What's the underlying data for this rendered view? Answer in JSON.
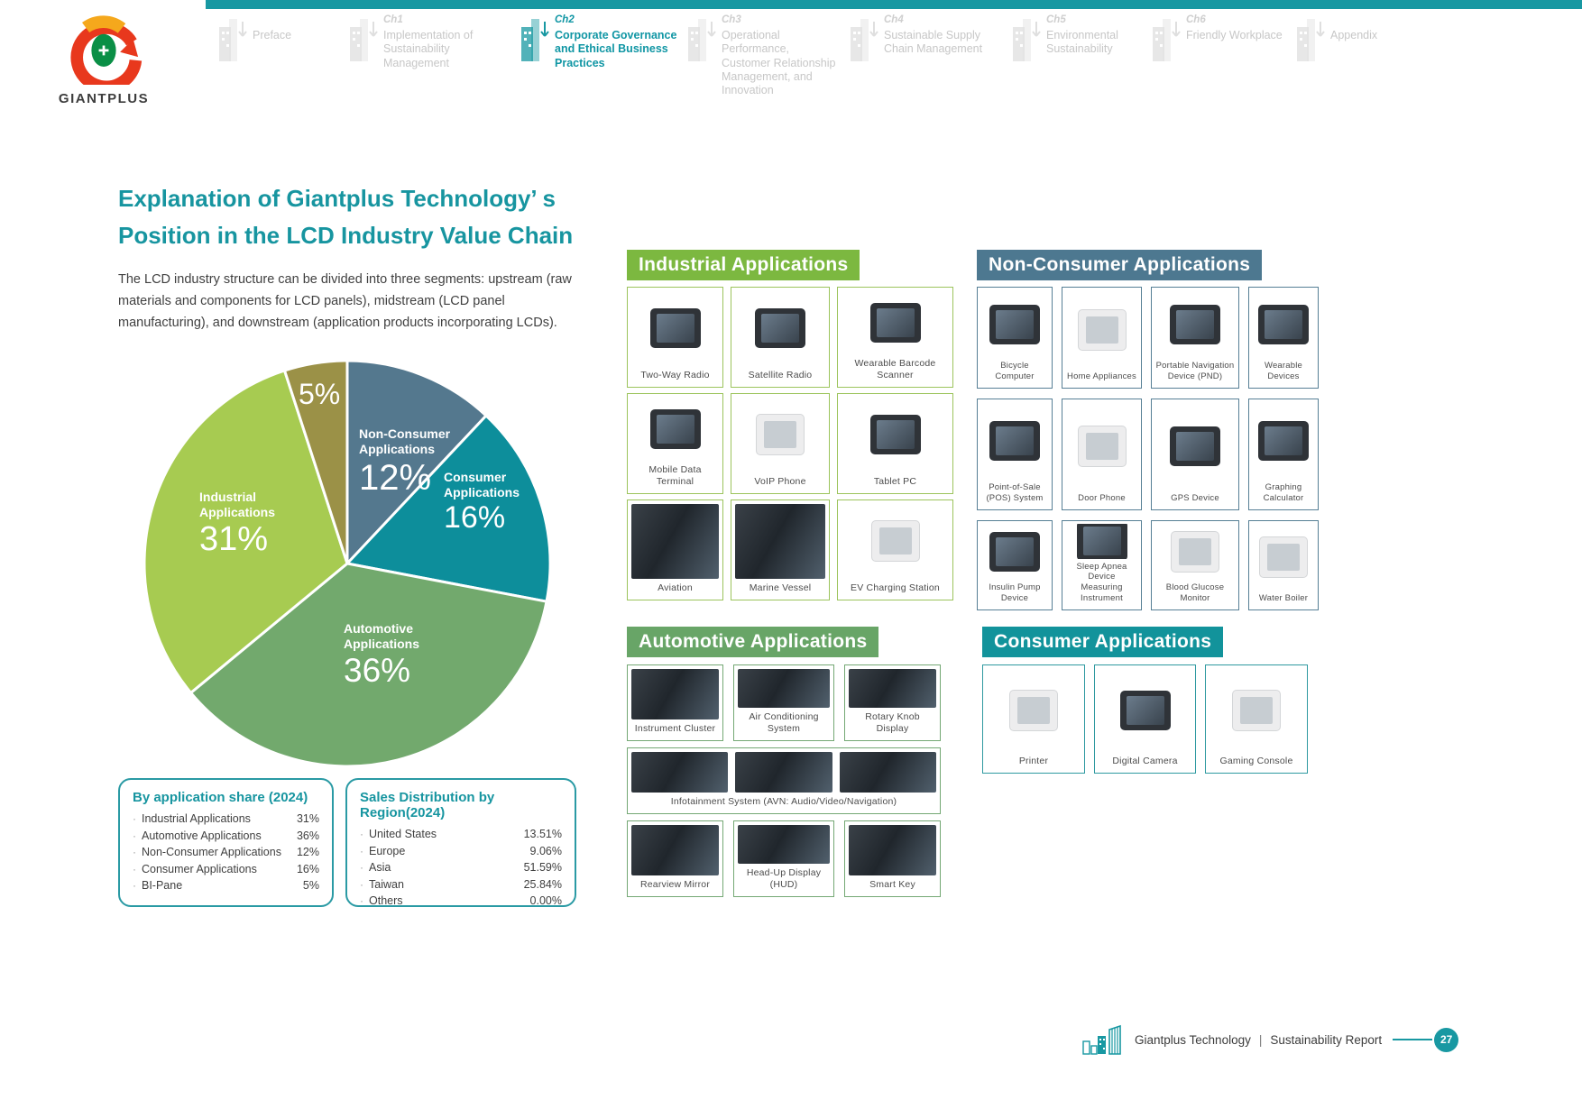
{
  "brand": {
    "logo_text": "GIANTPLUS"
  },
  "nav": {
    "items": [
      {
        "ch": "",
        "label": "Preface",
        "active": false
      },
      {
        "ch": "Ch1",
        "label": "Implementation of Sustainability Management",
        "active": false
      },
      {
        "ch": "Ch2",
        "label": "Corporate Governance and Ethical Business Practices",
        "active": true
      },
      {
        "ch": "Ch3",
        "label": "Operational Performance, Customer Relationship Management, and Innovation",
        "active": false
      },
      {
        "ch": "Ch4",
        "label": "Sustainable Supply Chain Management",
        "active": false
      },
      {
        "ch": "Ch5",
        "label": "Environmental Sustainability",
        "active": false
      },
      {
        "ch": "Ch6",
        "label": "Friendly Workplace",
        "active": false
      },
      {
        "ch": "",
        "label": "Appendix",
        "active": false
      }
    ]
  },
  "intro": {
    "title_line1": "Explanation of Giantplus Technology’ s",
    "title_line2": "Position in the LCD Industry Value Chain",
    "body": "The LCD industry structure can be divided into three segments: upstream (raw materials and components for LCD panels), midstream (LCD panel manufacturing), and downstream (application products incorporating LCDs)."
  },
  "chart_data": {
    "type": "pie",
    "title": "By application share (2024)",
    "categories": [
      "Non-Consumer Applications",
      "Consumer Applications",
      "Automotive Applications",
      "Industrial Applications",
      "BI-Pane"
    ],
    "values": [
      12,
      16,
      36,
      31,
      5
    ],
    "slice_labels": [
      "12%",
      "16%",
      "36%",
      "31%",
      "5%"
    ],
    "colors": [
      "#54788e",
      "#0d8e9b",
      "#72a96d",
      "#a7cb51",
      "#9b9147"
    ],
    "start_angle": "top",
    "direction": "clockwise",
    "legend_position": "none"
  },
  "share_box": {
    "title": "By application share (2024)",
    "rows": [
      {
        "label": "Industrial Applications",
        "value": "31%"
      },
      {
        "label": "Automotive Applications",
        "value": "36%"
      },
      {
        "label": "Non-Consumer Applications",
        "value": "12%"
      },
      {
        "label": "Consumer Applications",
        "value": "16%"
      },
      {
        "label": "BI-Pane",
        "value": "5%"
      }
    ]
  },
  "region_box": {
    "title": "Sales Distribution by Region(2024)",
    "rows": [
      {
        "label": "United States",
        "value": "13.51%"
      },
      {
        "label": "Europe",
        "value": "9.06%"
      },
      {
        "label": "Asia",
        "value": "51.59%"
      },
      {
        "label": "Taiwan",
        "value": "25.84%"
      },
      {
        "label": "Others",
        "value": "0.00%"
      }
    ]
  },
  "sections": {
    "industrial": {
      "title": "Industrial Applications",
      "header_color": "#7cb840",
      "items": [
        {
          "label": "Two-Way Radio",
          "img": "device"
        },
        {
          "label": "Satellite Radio",
          "img": "device"
        },
        {
          "label": "Wearable Barcode Scanner",
          "img": "device"
        },
        {
          "label": "Mobile Data Terminal",
          "img": "device"
        },
        {
          "label": "VoIP Phone",
          "img": "light"
        },
        {
          "label": "Tablet PC",
          "img": "device"
        },
        {
          "label": "Aviation",
          "img": "photo"
        },
        {
          "label": "Marine Vessel",
          "img": "photo"
        },
        {
          "label": "EV Charging Station",
          "img": "light"
        }
      ]
    },
    "non_consumer": {
      "title": "Non-Consumer Applications",
      "header_color": "#4d7890",
      "items": [
        {
          "label": "Bicycle Computer",
          "img": "device"
        },
        {
          "label": "Home Appliances",
          "img": "light"
        },
        {
          "label": "Portable Navigation Device (PND)",
          "img": "device"
        },
        {
          "label": "Wearable Devices",
          "img": "device"
        },
        {
          "label": "Point-of-Sale (POS) System",
          "img": "device"
        },
        {
          "label": "Door Phone",
          "img": "light"
        },
        {
          "label": "GPS Device",
          "img": "device"
        },
        {
          "label": "Graphing Calculator",
          "img": "device"
        },
        {
          "label": "Insulin Pump Device",
          "img": "device"
        },
        {
          "label": "Sleep Apnea Device Measuring Instrument",
          "img": "device"
        },
        {
          "label": "Blood Glucose Monitor",
          "img": "light"
        },
        {
          "label": "Water Boiler",
          "img": "light"
        }
      ]
    },
    "automotive": {
      "title": "Automotive Applications",
      "header_color": "#68a567",
      "rows": [
        {
          "type": "cells",
          "items": [
            {
              "label": "Instrument Cluster",
              "img": "photo"
            },
            {
              "label": "Air Conditioning System",
              "img": "photo"
            },
            {
              "label": "Rotary Knob Display",
              "img": "photo"
            }
          ]
        },
        {
          "type": "wide",
          "label": "Infotainment System (AVN: Audio/Video/Navigation)",
          "images": 3
        },
        {
          "type": "cells",
          "items": [
            {
              "label": "Rearview Mirror",
              "img": "photo"
            },
            {
              "label": "Head-Up Display (HUD)",
              "img": "photo"
            },
            {
              "label": "Smart Key",
              "img": "photo"
            }
          ]
        }
      ]
    },
    "consumer": {
      "title": "Consumer Applications",
      "header_color": "#12939b",
      "items": [
        {
          "label": "Printer",
          "img": "light"
        },
        {
          "label": "Digital Camera",
          "img": "device"
        },
        {
          "label": "Gaming Console",
          "img": "light"
        }
      ]
    }
  },
  "footer": {
    "company": "Giantplus Technology",
    "separator": "|",
    "report": "Sustainability Report",
    "page": "27"
  }
}
